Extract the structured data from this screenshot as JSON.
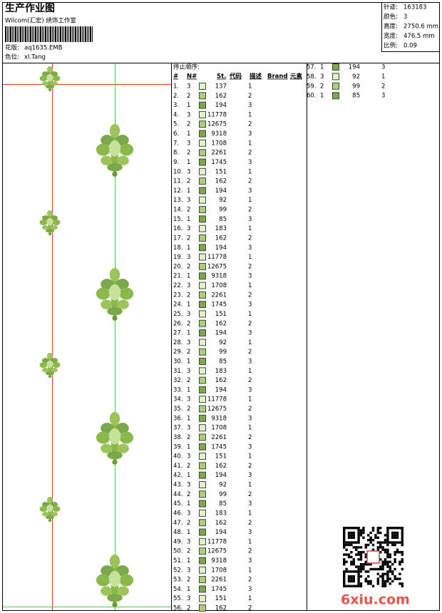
{
  "header": {
    "title": "生产作业图",
    "studio": "Wilcom(汇宏) 绣饰工作室",
    "design_label": "花版:",
    "design": "aq1635.EMB",
    "colorway_label": "色位:",
    "colorway": "xl.Tang"
  },
  "stats": [
    {
      "label": "针迹:",
      "value": "163183"
    },
    {
      "label": "颜色:",
      "value": "3"
    },
    {
      "label": "高度:",
      "value": "2750.6 mm"
    },
    {
      "label": "宽度:",
      "value": "476.5 mm"
    },
    {
      "label": "比例:",
      "value": "0.09"
    }
  ],
  "stop_sequence": {
    "title": "停止顺序:",
    "columns": [
      "#",
      "N#",
      "St.",
      "代码",
      "描述",
      "Brand",
      "元素"
    ],
    "needle_colors": {
      "1": "#7ba84a",
      "2": "#a9cf78",
      "3": "#e2f2c8"
    },
    "rows": [
      [
        "1.",
        "3",
        "137",
        "1"
      ],
      [
        "2.",
        "2",
        "162",
        "2"
      ],
      [
        "3.",
        "1",
        "194",
        "3"
      ],
      [
        "4.",
        "3",
        "11778",
        "1"
      ],
      [
        "5.",
        "2",
        "12675",
        "2"
      ],
      [
        "6.",
        "1",
        "9318",
        "3"
      ],
      [
        "7.",
        "3",
        "1708",
        "1"
      ],
      [
        "8.",
        "2",
        "2261",
        "2"
      ],
      [
        "9.",
        "1",
        "1745",
        "3"
      ],
      [
        "10.",
        "3",
        "151",
        "1"
      ],
      [
        "11.",
        "2",
        "162",
        "2"
      ],
      [
        "12.",
        "1",
        "194",
        "3"
      ],
      [
        "13.",
        "3",
        "92",
        "1"
      ],
      [
        "14.",
        "2",
        "99",
        "2"
      ],
      [
        "15.",
        "1",
        "85",
        "3"
      ],
      [
        "16.",
        "3",
        "183",
        "1"
      ],
      [
        "17.",
        "2",
        "162",
        "2"
      ],
      [
        "18.",
        "1",
        "194",
        "3"
      ],
      [
        "19.",
        "3",
        "11778",
        "1"
      ],
      [
        "20.",
        "2",
        "12675",
        "2"
      ],
      [
        "21.",
        "1",
        "9318",
        "3"
      ],
      [
        "22.",
        "3",
        "1708",
        "1"
      ],
      [
        "23.",
        "2",
        "2261",
        "2"
      ],
      [
        "24.",
        "1",
        "1745",
        "3"
      ],
      [
        "25.",
        "3",
        "151",
        "1"
      ],
      [
        "26.",
        "2",
        "162",
        "2"
      ],
      [
        "27.",
        "1",
        "194",
        "3"
      ],
      [
        "28.",
        "3",
        "92",
        "1"
      ],
      [
        "29.",
        "2",
        "99",
        "2"
      ],
      [
        "30.",
        "1",
        "85",
        "3"
      ],
      [
        "31.",
        "3",
        "183",
        "1"
      ],
      [
        "32.",
        "2",
        "162",
        "2"
      ],
      [
        "33.",
        "1",
        "194",
        "3"
      ],
      [
        "34.",
        "3",
        "11778",
        "1"
      ],
      [
        "35.",
        "2",
        "12675",
        "2"
      ],
      [
        "36.",
        "1",
        "9318",
        "3"
      ],
      [
        "37.",
        "3",
        "1708",
        "1"
      ],
      [
        "38.",
        "2",
        "2261",
        "2"
      ],
      [
        "39.",
        "1",
        "1745",
        "3"
      ],
      [
        "40.",
        "3",
        "151",
        "1"
      ],
      [
        "41.",
        "2",
        "162",
        "2"
      ],
      [
        "42.",
        "1",
        "194",
        "3"
      ],
      [
        "43.",
        "3",
        "92",
        "1"
      ],
      [
        "44.",
        "2",
        "99",
        "2"
      ],
      [
        "45.",
        "1",
        "85",
        "3"
      ],
      [
        "46.",
        "3",
        "183",
        "1"
      ],
      [
        "47.",
        "2",
        "162",
        "2"
      ],
      [
        "48.",
        "1",
        "194",
        "3"
      ],
      [
        "49.",
        "3",
        "11778",
        "1"
      ],
      [
        "50.",
        "2",
        "12675",
        "2"
      ],
      [
        "51.",
        "1",
        "9318",
        "3"
      ],
      [
        "52.",
        "3",
        "1708",
        "1"
      ],
      [
        "53.",
        "2",
        "2261",
        "2"
      ],
      [
        "54.",
        "1",
        "1745",
        "3"
      ],
      [
        "55.",
        "3",
        "151",
        "1"
      ],
      [
        "56.",
        "2",
        "162",
        "2"
      ],
      [
        "57.",
        "1",
        "194",
        "3"
      ],
      [
        "58.",
        "3",
        "92",
        "1"
      ],
      [
        "59.",
        "2",
        "99",
        "2"
      ],
      [
        "60.",
        "1",
        "85",
        "3"
      ]
    ]
  },
  "watermark": "6xiu.com"
}
